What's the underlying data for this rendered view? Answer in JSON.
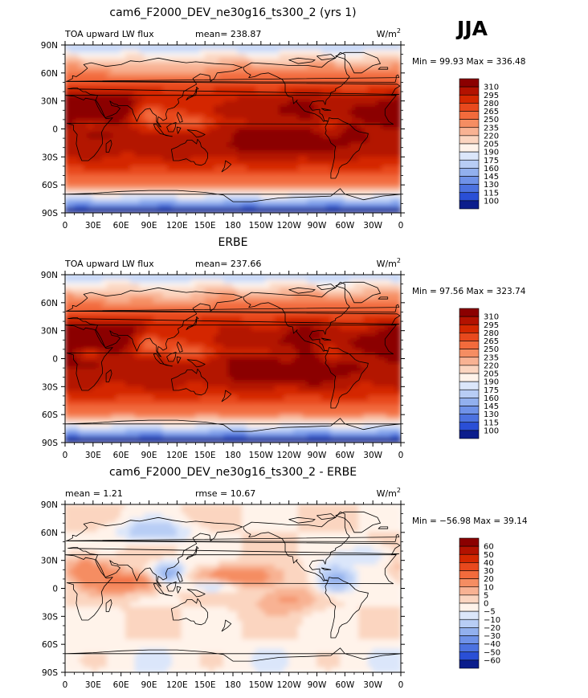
{
  "season": "JJA",
  "chart_data": [
    {
      "type": "heatmap",
      "map_projection": "cylindrical-equidistant",
      "title": "cam6_F2000_DEV_ne30g16_ts300_2 (yrs 1)",
      "left_label": "TOA upward LW flux",
      "center_label": "mean= 238.87",
      "units_main": "W/m",
      "units_sup": "2",
      "stats": "Min =   99.93 Max =  336.48",
      "min": 99.93,
      "max": 336.48,
      "mean": 238.87,
      "x_ticks": [
        "0",
        "30E",
        "60E",
        "90E",
        "120E",
        "150E",
        "180",
        "150W",
        "120W",
        "90W",
        "60W",
        "30W",
        "0"
      ],
      "y_ticks": [
        "90N",
        "60N",
        "30N",
        "0",
        "30S",
        "60S",
        "90S"
      ],
      "colorbar_levels": [
        "310",
        "295",
        "280",
        "265",
        "250",
        "235",
        "220",
        "205",
        "190",
        "175",
        "160",
        "145",
        "130",
        "115",
        "100"
      ],
      "colorbar_colors": [
        "#8b0000",
        "#b31200",
        "#d42800",
        "#e8491d",
        "#f26b3c",
        "#f58d62",
        "#f8b293",
        "#fbd5c0",
        "#fff3ea",
        "#dbe6fa",
        "#b8cdf5",
        "#92b0ee",
        "#6f92e8",
        "#4c72e0",
        "#2a4fd6",
        "#0b1d8c"
      ]
    },
    {
      "type": "heatmap",
      "map_projection": "cylindrical-equidistant",
      "title": "ERBE",
      "left_label": "TOA upward LW flux",
      "center_label": "mean= 237.66",
      "units_main": "W/m",
      "units_sup": "2",
      "stats": "Min =   97.56 Max =  323.74",
      "min": 97.56,
      "max": 323.74,
      "mean": 237.66,
      "x_ticks": [
        "0",
        "30E",
        "60E",
        "90E",
        "120E",
        "150E",
        "180",
        "150W",
        "120W",
        "90W",
        "60W",
        "30W",
        "0"
      ],
      "y_ticks": [
        "90N",
        "60N",
        "30N",
        "0",
        "30S",
        "60S",
        "90S"
      ],
      "colorbar_levels": [
        "310",
        "295",
        "280",
        "265",
        "250",
        "235",
        "220",
        "205",
        "190",
        "175",
        "160",
        "145",
        "130",
        "115",
        "100"
      ],
      "colorbar_colors": [
        "#8b0000",
        "#b31200",
        "#d42800",
        "#e8491d",
        "#f26b3c",
        "#f58d62",
        "#f8b293",
        "#fbd5c0",
        "#fff3ea",
        "#dbe6fa",
        "#b8cdf5",
        "#92b0ee",
        "#6f92e8",
        "#4c72e0",
        "#2a4fd6",
        "#0b1d8c"
      ]
    },
    {
      "type": "heatmap",
      "map_projection": "cylindrical-equidistant",
      "title": "cam6_F2000_DEV_ne30g16_ts300_2 - ERBE",
      "left_label": "mean =     1.21",
      "center_label": "rmse =   10.67",
      "units_main": "W/m",
      "units_sup": "2",
      "stats": "Min = −56.98 Max =   39.14",
      "min": -56.98,
      "max": 39.14,
      "mean": 1.21,
      "rmse": 10.67,
      "x_ticks": [
        "0",
        "30E",
        "60E",
        "90E",
        "120E",
        "150E",
        "180",
        "150W",
        "120W",
        "90W",
        "60W",
        "30W",
        "0"
      ],
      "y_ticks": [
        "90N",
        "60N",
        "30N",
        "0",
        "30S",
        "60S",
        "90S"
      ],
      "colorbar_levels": [
        "60",
        "50",
        "40",
        "30",
        "20",
        "10",
        "5",
        "0",
        "−5",
        "−10",
        "−20",
        "−30",
        "−40",
        "−50",
        "−60"
      ],
      "colorbar_colors": [
        "#8b0000",
        "#b31200",
        "#d42800",
        "#e8491d",
        "#f26b3c",
        "#f58d62",
        "#f8b293",
        "#fbd5c0",
        "#fff3ea",
        "#dbe6fa",
        "#b8cdf5",
        "#92b0ee",
        "#6f92e8",
        "#4c72e0",
        "#2a4fd6",
        "#0b1d8c"
      ]
    }
  ]
}
